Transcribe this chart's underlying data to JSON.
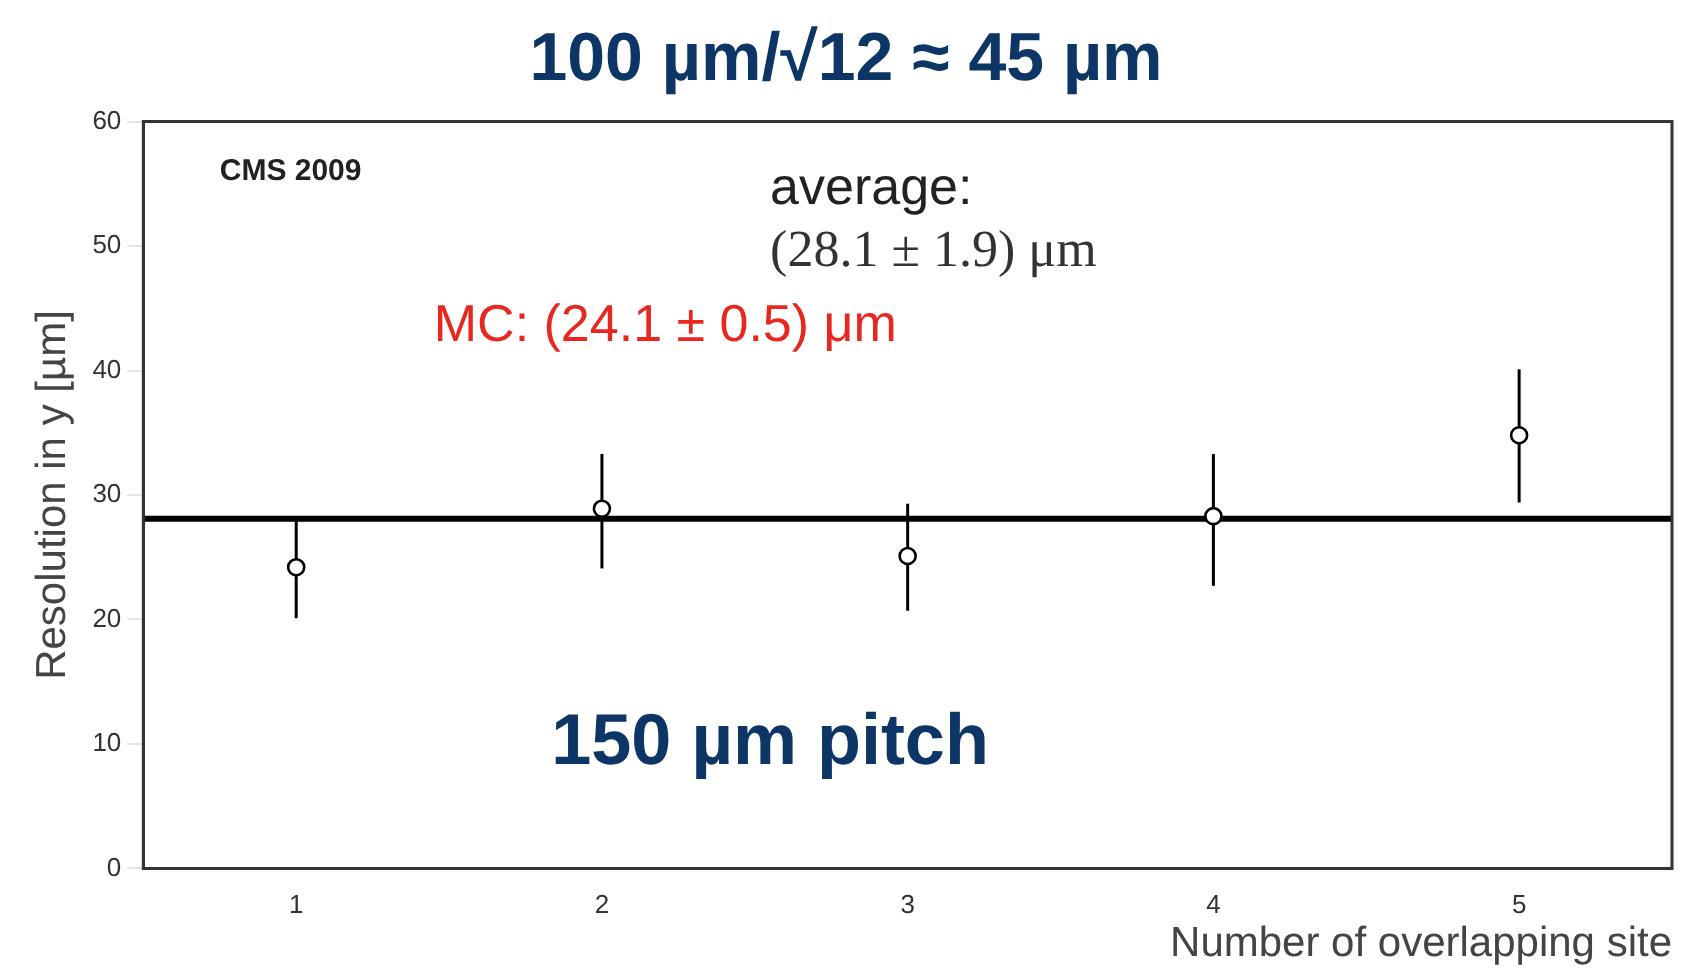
{
  "chart_data": {
    "type": "scatter",
    "title": "100 µm/√12 ≈ 45 µm",
    "xlabel": "Number of overlapping site",
    "ylabel": "Resolution in y [µm]",
    "x": [
      1,
      2,
      3,
      4,
      5
    ],
    "series": [
      {
        "color": "#000000",
        "values": [
          24.2,
          28.9,
          25.1,
          28.3,
          34.8
        ],
        "errors": [
          [
            20.1,
            27.9
          ],
          [
            24.1,
            33.3
          ],
          [
            20.7,
            29.3
          ],
          [
            22.7,
            33.3
          ],
          [
            29.4,
            40.1
          ]
        ]
      }
    ],
    "xlim": [
      0.5,
      5.5
    ],
    "xticks": [
      1,
      2,
      3,
      4,
      5
    ],
    "ylim": [
      0,
      60
    ],
    "yticks": [
      0,
      10,
      20,
      30,
      40,
      50,
      60
    ],
    "ref_lines": [
      {
        "axis": "y",
        "value": 28.1,
        "color": "#000000"
      }
    ],
    "annotations": [
      "CMS 2009",
      "average:",
      "(28.1 ± 1.9) μm",
      "MC: (24.1 ± 0.5) μm",
      "150 µm pitch"
    ],
    "marker": "circle",
    "grid": false,
    "legend": false
  }
}
